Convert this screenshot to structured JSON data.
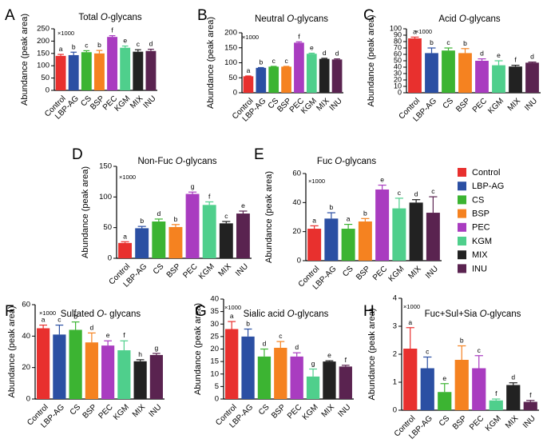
{
  "colors": {
    "Control": "#e8302e",
    "LBP-AG": "#2b4fa3",
    "CS": "#3cb432",
    "BSP": "#f58220",
    "PEC": "#a93cc0",
    "KGM": "#4fcf8c",
    "MIX": "#222222",
    "INU": "#5a2350"
  },
  "legend": {
    "entries": [
      "Control",
      "LBP-AG",
      "CS",
      "BSP",
      "PEC",
      "KGM",
      "MIX",
      "INU"
    ]
  },
  "chart_data": [
    {
      "panel": "A",
      "type": "bar",
      "title_pre": "Total ",
      "title_it": "O",
      "title_post": "-glycans",
      "ylabel": "Abundance (peak area)",
      "multiplier": "×1000",
      "ylim": [
        0,
        250
      ],
      "yticks": [
        0,
        50,
        100,
        150,
        200,
        250
      ],
      "categories": [
        "Control",
        "LBP-AG",
        "CS",
        "BSP",
        "PEC",
        "KGM",
        "MIX",
        "INU"
      ],
      "values": [
        140,
        143,
        155,
        150,
        217,
        173,
        157,
        160
      ],
      "errors": [
        6,
        12,
        6,
        12,
        5,
        7,
        8,
        7
      ],
      "letters": [
        "a",
        "b",
        "c",
        "b",
        "f",
        "e",
        "c",
        "d"
      ]
    },
    {
      "panel": "B",
      "type": "bar",
      "title_pre": "Neutral ",
      "title_it": "O",
      "title_post": "-glycans",
      "ylabel": "Abundance (peak area)",
      "multiplier": "×1000",
      "ylim": [
        0,
        200
      ],
      "yticks": [
        0,
        50,
        100,
        150,
        200
      ],
      "categories": [
        "Control",
        "LBP-AG",
        "CS",
        "BSP",
        "PEC",
        "KGM",
        "MIX",
        "INU"
      ],
      "values": [
        55,
        83,
        87,
        87,
        167,
        130,
        113,
        111
      ],
      "errors": [
        1,
        1,
        1,
        1,
        3,
        2,
        2,
        2
      ],
      "letters": [
        "a",
        "b",
        "c",
        "c",
        "f",
        "e",
        "d",
        "d"
      ]
    },
    {
      "panel": "C",
      "type": "bar",
      "title_pre": "Acid ",
      "title_it": "O",
      "title_post": "-glycans",
      "ylabel": "Abundance (peak area)",
      "multiplier": "×1000",
      "ylim": [
        0,
        100
      ],
      "yticks": [
        0,
        10,
        20,
        30,
        40,
        50,
        60,
        70,
        80,
        90,
        100
      ],
      "categories": [
        "Control",
        "LBP-AG",
        "CS",
        "BSP",
        "PEC",
        "KGM",
        "MIX",
        "INU"
      ],
      "values": [
        85,
        62,
        66,
        62,
        50,
        43,
        41,
        47
      ],
      "errors": [
        2,
        8,
        4,
        7,
        3,
        7,
        2,
        1
      ],
      "letters": [
        "a",
        "b",
        "c",
        "b",
        "d",
        "e",
        "f",
        "d"
      ]
    },
    {
      "panel": "D",
      "type": "bar",
      "title_pre": "Non-Fuc ",
      "title_it": "O",
      "title_post": "-glycans",
      "ylabel": "Abundance (peak area)",
      "multiplier": "×1000",
      "ylim": [
        0,
        150
      ],
      "yticks": [
        0,
        50,
        100,
        150
      ],
      "categories": [
        "Control",
        "LBP-AG",
        "CS",
        "BSP",
        "PEC",
        "KGM",
        "MIX",
        "INU"
      ],
      "values": [
        25,
        49,
        60,
        51,
        105,
        87,
        57,
        73
      ],
      "errors": [
        2,
        3,
        4,
        4,
        3,
        5,
        3,
        4
      ],
      "letters": [
        "a",
        "b",
        "d",
        "b",
        "g",
        "f",
        "c",
        "e"
      ]
    },
    {
      "panel": "E",
      "type": "bar",
      "title_pre": "Fuc ",
      "title_it": "O",
      "title_post": "-glycans",
      "ylabel": "Abundance (peak area)",
      "multiplier": "×1000",
      "ylim": [
        0,
        60
      ],
      "yticks": [
        0,
        20,
        40,
        60
      ],
      "categories": [
        "Control",
        "LBP-AG",
        "CS",
        "BSP",
        "PEC",
        "KGM",
        "MIX",
        "INU"
      ],
      "values": [
        22,
        29,
        22,
        27,
        49,
        36,
        40,
        33
      ],
      "errors": [
        2,
        4,
        3,
        2,
        3,
        7,
        2,
        11
      ],
      "letters": [
        "a",
        "b",
        "a",
        "b",
        "e",
        "c",
        "d",
        "c"
      ]
    },
    {
      "panel": "F",
      "type": "bar",
      "title_pre": "Sulfated ",
      "title_it": "O",
      "title_post": "- glycans",
      "ylabel": "Abundance (peak area)",
      "multiplier": "×1000",
      "ylim": [
        0,
        60
      ],
      "yticks": [
        0,
        20,
        40,
        60
      ],
      "categories": [
        "Control",
        "LBP-AG",
        "CS",
        "BSP",
        "PEC",
        "KGM",
        "MIX",
        "INU"
      ],
      "values": [
        45,
        41,
        44,
        36,
        34,
        31,
        24,
        28
      ],
      "errors": [
        2,
        6,
        5,
        6,
        3,
        6,
        1,
        1
      ],
      "letters": [
        "a",
        "c",
        "b",
        "d",
        "e",
        "f",
        "h",
        "g"
      ]
    },
    {
      "panel": "G",
      "type": "bar",
      "title_pre": "Sialic acid ",
      "title_it": "O",
      "title_post": "-glycans",
      "ylabel": "Abundance (peak area)",
      "multiplier": "×1000",
      "ylim": [
        0,
        40
      ],
      "yticks": [
        0,
        5,
        10,
        15,
        20,
        25,
        30,
        35,
        40
      ],
      "categories": [
        "Control",
        "LBP-AG",
        "CS",
        "BSP",
        "PEC",
        "KGM",
        "MIX",
        "INU"
      ],
      "values": [
        28,
        25,
        17,
        20.5,
        17,
        9,
        15,
        13
      ],
      "errors": [
        3,
        3,
        3,
        2.5,
        1.5,
        3,
        0.3,
        0.5
      ],
      "letters": [
        "a",
        "b",
        "d",
        "c",
        "d",
        "g",
        "e",
        "f"
      ]
    },
    {
      "panel": "H",
      "type": "bar",
      "title_pre": "Fuc+Sul+Sia ",
      "title_it": "O",
      "title_post": "-glycans",
      "ylabel": "Abundance (peak area)",
      "multiplier": "×1000",
      "ylim": [
        0,
        4
      ],
      "yticks": [
        0,
        1,
        2,
        3,
        4
      ],
      "categories": [
        "Control",
        "LBP-AG",
        "CS",
        "BSP",
        "PEC",
        "KGM",
        "MIX",
        "INU"
      ],
      "values": [
        2.2,
        1.5,
        0.65,
        1.8,
        1.5,
        0.35,
        0.9,
        0.3
      ],
      "errors": [
        0.75,
        0.4,
        0.3,
        0.5,
        0.45,
        0.05,
        0.08,
        0.05
      ],
      "letters": [
        "a",
        "c",
        "e",
        "b",
        "c",
        "f",
        "d",
        "f"
      ]
    }
  ]
}
